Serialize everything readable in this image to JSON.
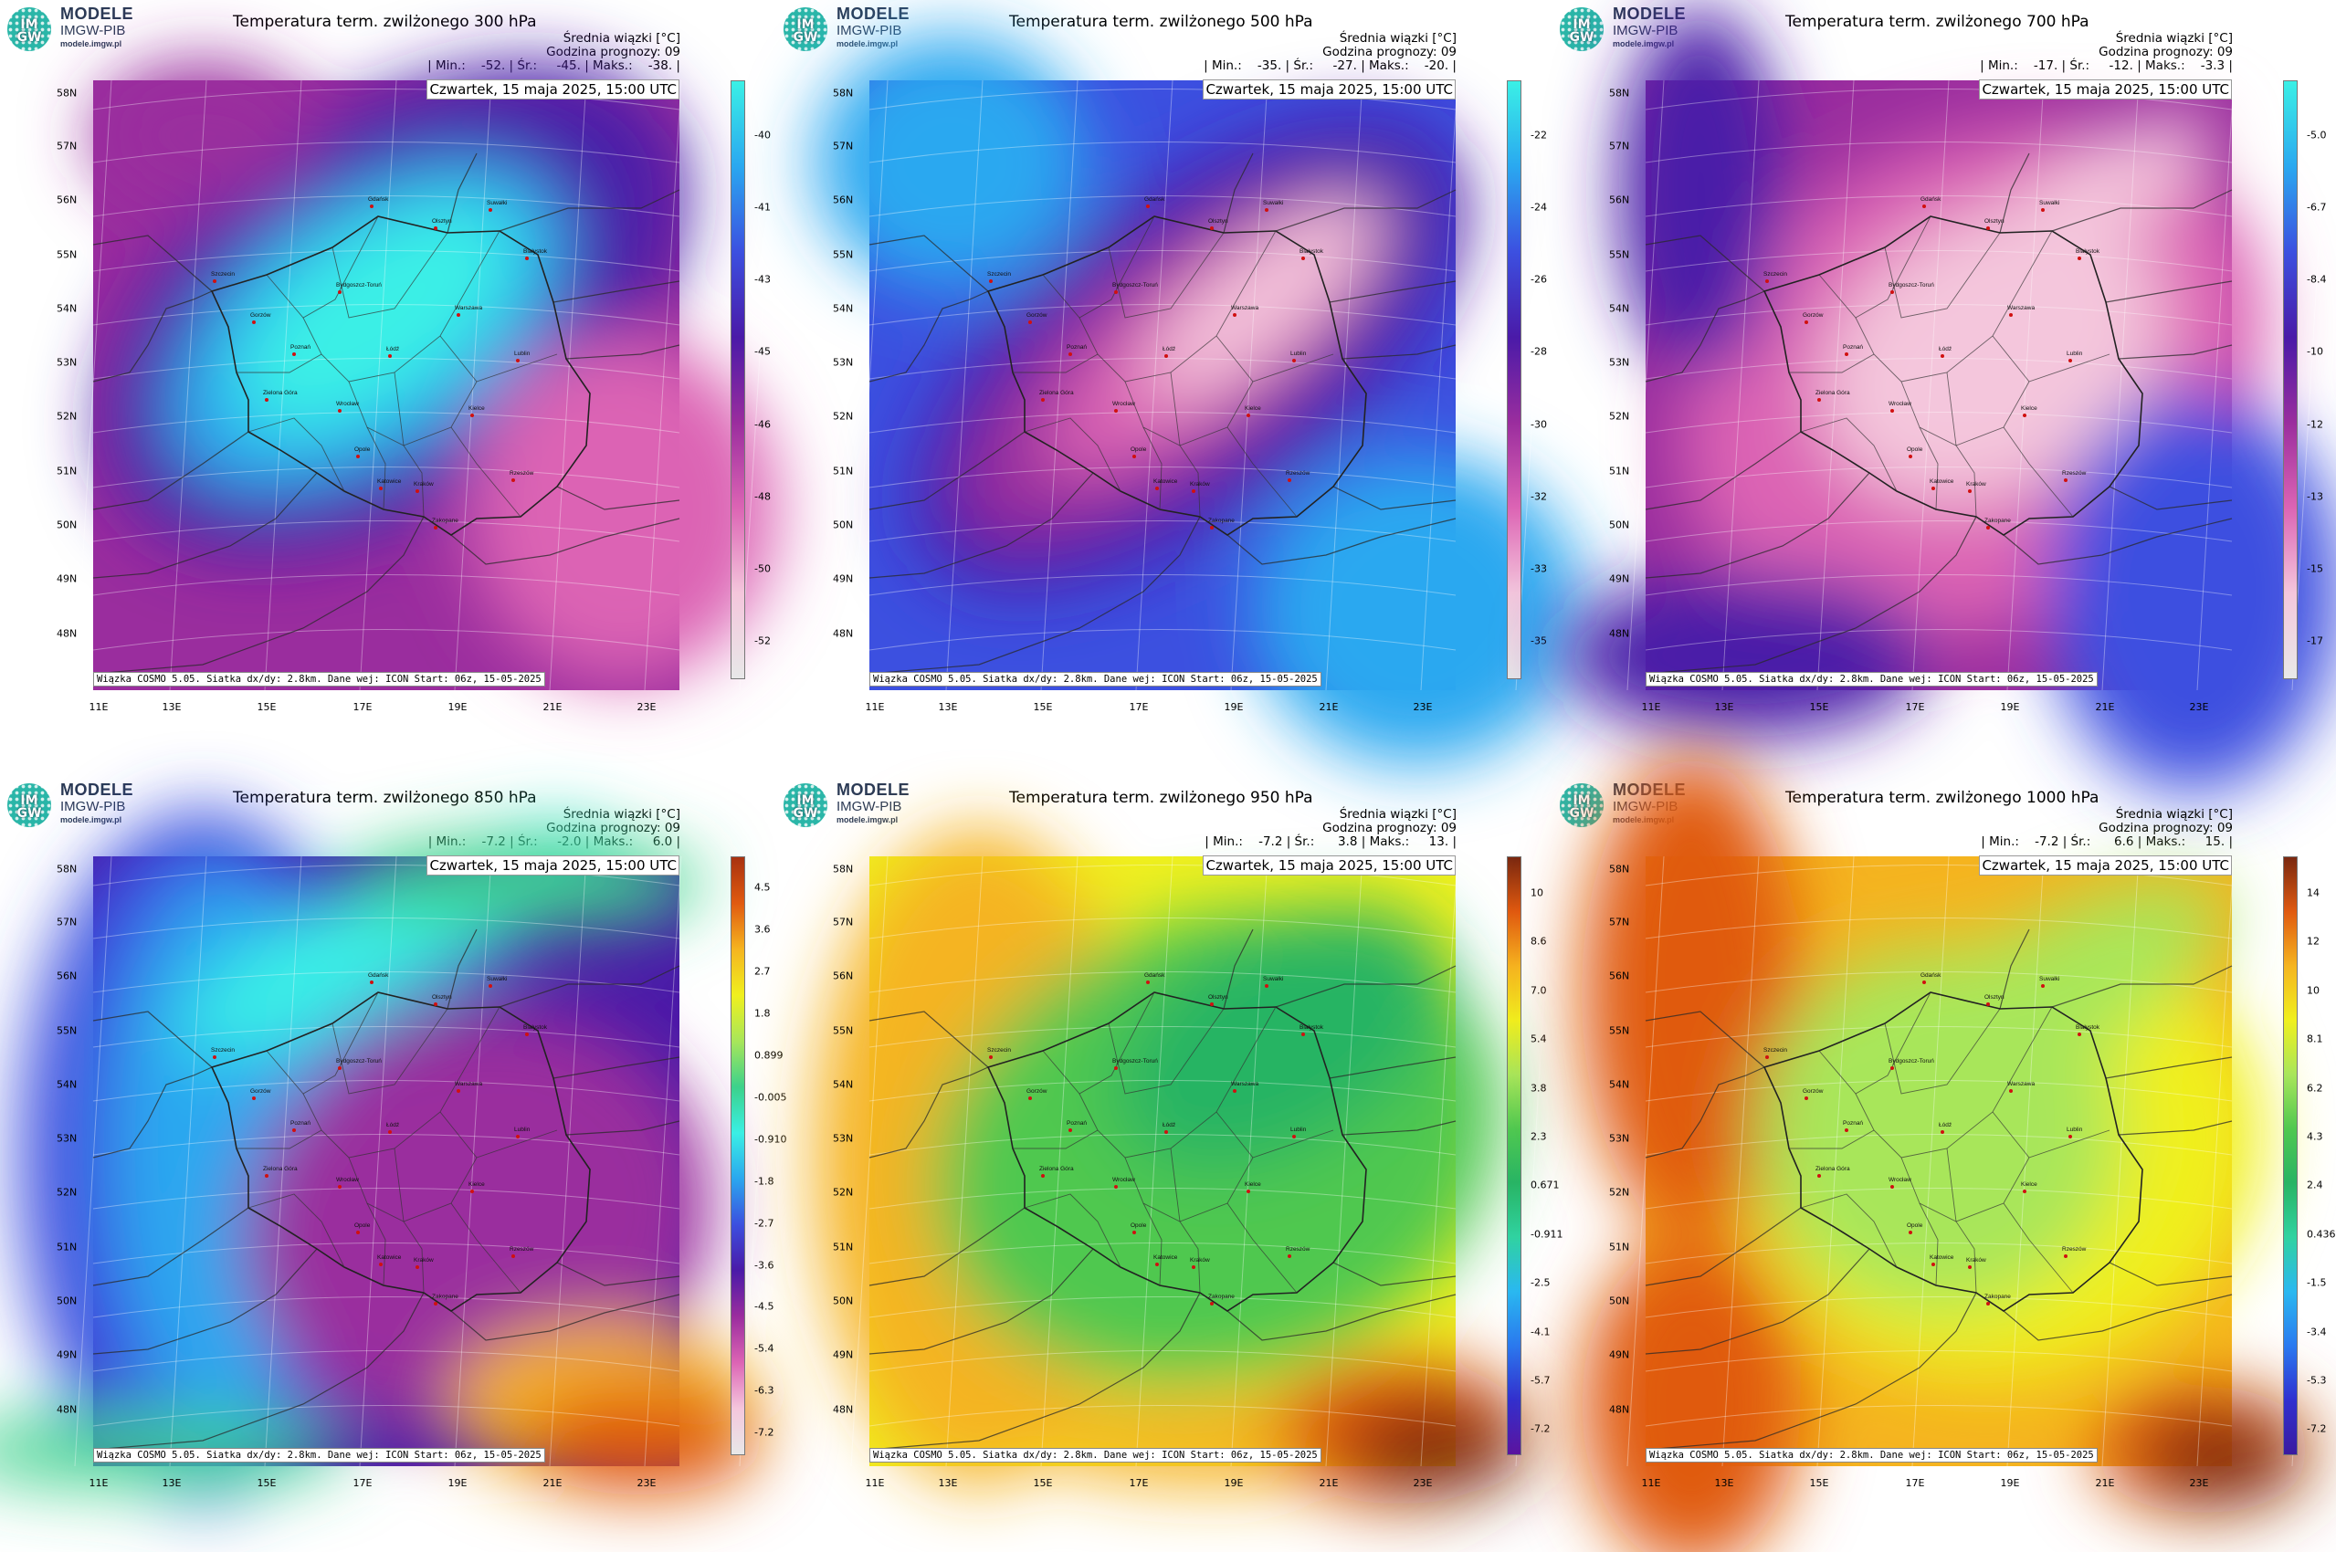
{
  "logo": {
    "circle_text": "IM\nGW",
    "line1": "MODELE",
    "line2": "IMGW-PIB",
    "line3": "modele.imgw.pl"
  },
  "info_title": "Średnia wiązki [°C]",
  "forecast_hour_label": "Godzina prognozy: 09",
  "date_label": "Czwartek, 15 maja 2025, 15:00 UTC",
  "footer": "Wiązka COSMO 5.05. Siatka dx/dy: 2.8km. Dane wej: ICON Start: 06z, 15-05-2025",
  "lat_labels": [
    "58N",
    "57N",
    "56N",
    "55N",
    "54N",
    "53N",
    "52N",
    "51N",
    "50N",
    "49N",
    "48N"
  ],
  "lon_labels": [
    "11E",
    "13E",
    "15E",
    "17E",
    "19E",
    "21E",
    "23E"
  ],
  "cities": [
    "Gdańsk",
    "Olsztyn",
    "Suwałki",
    "Białystok",
    "Szczecin",
    "Bydgoszcz-Toruń",
    "Gorzów",
    "Poznań",
    "Warszawa",
    "Zielona Góra",
    "Łódź",
    "Lublin",
    "Wrocław",
    "Kielce",
    "Opole",
    "Katowice",
    "Kraków",
    "Rzeszów",
    "Zakopane"
  ],
  "panels": [
    {
      "title": "Temperatura term. zwilżonego 300 hPa",
      "stats": "| Min.:    -52. | Śr.:     -45. | Maks.:    -38. |",
      "cbar_labels": [
        "-40",
        "-41",
        "-43",
        "-45",
        "-46",
        "-48",
        "-50",
        "-52"
      ],
      "colors": [
        "#e8e8e8",
        "#f4c6dc",
        "#dc64b4",
        "#9a2d9e",
        "#4a1aa8",
        "#3c50e0",
        "#2aa8f0",
        "#3af0e6"
      ]
    },
    {
      "title": "Temperatura term. zwilżonego 500 hPa",
      "stats": "| Min.:    -35. | Śr.:     -27. | Maks.:    -20. |",
      "cbar_labels": [
        "-22",
        "-24",
        "-26",
        "-28",
        "-30",
        "-32",
        "-33",
        "-35"
      ],
      "colors": [
        "#e8e8e8",
        "#f4c6dc",
        "#dc64b4",
        "#9a2d9e",
        "#4a1aa8",
        "#3c50e0",
        "#2aa8f0",
        "#3af0e6"
      ]
    },
    {
      "title": "Temperatura term. zwilżonego 700 hPa",
      "stats": "| Min.:    -17. | Śr.:     -12. | Maks.:    -3.3 |",
      "cbar_labels": [
        "-5.0",
        "-6.7",
        "-8.4",
        "-10",
        "-12",
        "-13",
        "-15",
        "-17"
      ],
      "colors": [
        "#e8e8e8",
        "#f4c6dc",
        "#dc64b4",
        "#9a2d9e",
        "#4a1aa8",
        "#3c50e0",
        "#2aa8f0",
        "#3af0e6"
      ]
    },
    {
      "title": "Temperatura term. zwilżonego 850 hPa",
      "stats": "| Min.:    -7.2 | Śr.:     -2.0 | Maks.:     6.0 |",
      "cbar_labels": [
        "4.5",
        "3.6",
        "2.7",
        "1.8",
        "0.899",
        "-0.005",
        "-0.910",
        "-1.8",
        "-2.7",
        "-3.6",
        "-4.5",
        "-5.4",
        "-6.3",
        "-7.2"
      ],
      "colors": [
        "#e8e8e8",
        "#f4c6dc",
        "#dc64b4",
        "#9a2d9e",
        "#4a1aa8",
        "#3c50e0",
        "#2aa8f0",
        "#3af0e6",
        "#3cd28c",
        "#a8e65a",
        "#f0f01e",
        "#f5b420",
        "#e05a10",
        "#a83210"
      ]
    },
    {
      "title": "Temperatura term. zwilżonego 950 hPa",
      "stats": "| Min.:    -7.2 | Śr.:      3.8 | Maks.:     13. |",
      "cbar_labels": [
        "10",
        "8.6",
        "7.0",
        "5.4",
        "3.8",
        "2.3",
        "0.671",
        "-0.911",
        "-2.5",
        "-4.1",
        "-5.7",
        "-7.2"
      ],
      "colors": [
        "#5a14a0",
        "#3030d0",
        "#2a7af0",
        "#2ab8f0",
        "#30d2a0",
        "#28b464",
        "#50c850",
        "#a8e65a",
        "#f0f01e",
        "#f5b420",
        "#e05a10",
        "#7a2810"
      ]
    },
    {
      "title": "Temperatura term. zwilżonego 1000 hPa",
      "stats": "| Min.:    -7.2 | Śr.:      6.6 | Maks.:     15. |",
      "cbar_labels": [
        "14",
        "12",
        "10",
        "8.1",
        "6.2",
        "4.3",
        "2.4",
        "0.436",
        "-1.5",
        "-3.4",
        "-5.3",
        "-7.2"
      ],
      "colors": [
        "#3a1aa0",
        "#3030d0",
        "#2a7af0",
        "#2ab8f0",
        "#30d2a0",
        "#28b464",
        "#50c850",
        "#a8e65a",
        "#f0f01e",
        "#f5b420",
        "#e05a10",
        "#7a2810"
      ]
    }
  ]
}
